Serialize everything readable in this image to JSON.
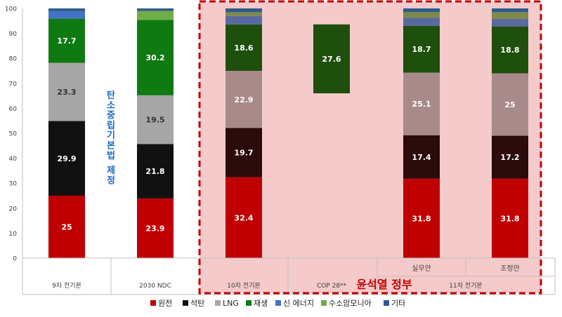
{
  "chart_data": {
    "type": "bar",
    "stacked": true,
    "ylim": [
      0,
      100
    ],
    "yticks": [
      0,
      10,
      20,
      30,
      40,
      50,
      60,
      70,
      80,
      90,
      100
    ],
    "grid": false,
    "legend_position": "bottom",
    "series": [
      {
        "name": "원전",
        "color": "#c00000"
      },
      {
        "name": "석탄",
        "color": "#111111"
      },
      {
        "name": "LNG",
        "color": "#a6a6a6"
      },
      {
        "name": "재생",
        "color": "#0f7a12"
      },
      {
        "name": "신 에너지",
        "color": "#4472c4"
      },
      {
        "name": "수소암모니아",
        "color": "#70ad47"
      },
      {
        "name": "기타",
        "color": "#2e5c8a"
      }
    ],
    "bars": [
      {
        "id": "b1",
        "values": [
          25,
          29.9,
          23.3,
          17.7,
          3.0,
          0,
          1.1
        ],
        "labels": [
          "25",
          "29.9",
          "23.3",
          "17.7",
          "",
          "",
          ""
        ]
      },
      {
        "id": "b2",
        "values": [
          23.9,
          21.8,
          19.5,
          30.2,
          0,
          3.6,
          1.0
        ],
        "labels": [
          "23.9",
          "21.8",
          "19.5",
          "30.2",
          "",
          "",
          ""
        ]
      },
      {
        "id": "b3",
        "values": [
          32.4,
          19.7,
          22.9,
          18.6,
          3.4,
          1.5,
          1.5
        ],
        "labels": [
          "32.4",
          "19.7",
          "22.9",
          "18.6",
          "",
          "",
          ""
        ]
      },
      {
        "id": "b4",
        "base": 66,
        "values": [
          0,
          0,
          0,
          27.6,
          0,
          0,
          0
        ],
        "labels": [
          "",
          "",
          "",
          "27.6",
          "",
          "",
          ""
        ]
      },
      {
        "id": "b5",
        "values": [
          31.8,
          17.4,
          25.1,
          18.7,
          3.2,
          2.3,
          1.5
        ],
        "labels": [
          "31.8",
          "17.4",
          "25.1",
          "18.7",
          "",
          "",
          ""
        ]
      },
      {
        "id": "b6",
        "values": [
          31.8,
          17.2,
          25,
          18.8,
          3.0,
          2.7,
          1.5
        ],
        "labels": [
          "31.8",
          "17.2",
          "25",
          "18.8",
          "",
          "",
          ""
        ]
      }
    ],
    "category_labels": [
      {
        "text": "9차 전기본"
      },
      {
        "text": "2030 NDC"
      },
      {
        "text": "10차 전기본"
      },
      {
        "text": "COP 28**"
      },
      {
        "text": "11차 전기본"
      }
    ],
    "sub_labels": [
      "실무안",
      "조정안"
    ],
    "annotations": {
      "vertical_note": "탄소중립기본법 제정",
      "highlight_label": "윤석열 정부"
    }
  }
}
